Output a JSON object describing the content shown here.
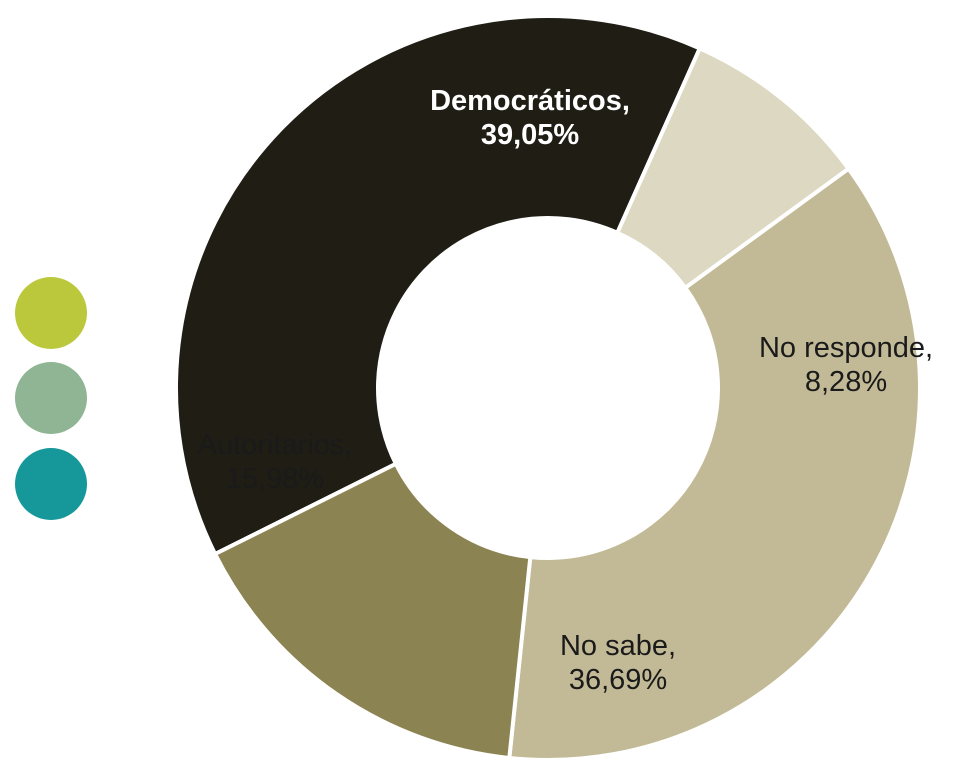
{
  "chart_data": {
    "type": "pie",
    "variant": "donut",
    "slices": [
      {
        "label": "Democráticos,",
        "value_label": "39,05%",
        "value": 39.05,
        "color": "#1f1d14",
        "text_color": "#ffffff",
        "bold": true
      },
      {
        "label": "No responde,",
        "value_label": "8,28%",
        "value": 8.28,
        "color": "#ddd8c2",
        "text_color": "#1a1a1a",
        "bold": false
      },
      {
        "label": "No sabe,",
        "value_label": "36,69%",
        "value": 36.69,
        "color": "#c2ba96",
        "text_color": "#1a1a1a",
        "bold": false
      },
      {
        "label": "Autoritarios,",
        "value_label": "15,98%",
        "value": 15.98,
        "color": "#8c8352",
        "text_color": "#1a1a1a",
        "bold": false
      }
    ]
  },
  "legend_dots": [
    {
      "color": "#bcc83c"
    },
    {
      "color": "#8fb594"
    },
    {
      "color": "#16989a"
    }
  ]
}
